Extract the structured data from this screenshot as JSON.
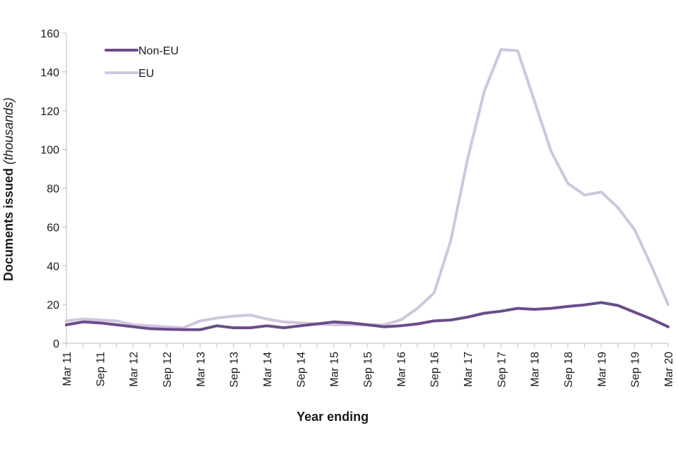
{
  "chart_data": {
    "type": "line",
    "xlabel": "Year ending",
    "ylabel": "Documents issued",
    "ylabel_suffix": "(thousands)",
    "ylim": [
      0,
      160
    ],
    "yticks": [
      0,
      20,
      40,
      60,
      80,
      100,
      120,
      140,
      160
    ],
    "grid": false,
    "legend_position": "top-left",
    "x": [
      "Mar 11",
      "Jun 11",
      "Sep 11",
      "Dec 11",
      "Mar 12",
      "Jun 12",
      "Sep 12",
      "Dec 12",
      "Mar 13",
      "Jun 13",
      "Sep 13",
      "Dec 13",
      "Mar 14",
      "Jun 14",
      "Sep 14",
      "Dec 14",
      "Mar 15",
      "Jun 15",
      "Sep 15",
      "Dec 15",
      "Mar 16",
      "Jun 16",
      "Sep 16",
      "Dec 16",
      "Mar 17",
      "Jun 17",
      "Sep 17",
      "Dec 17",
      "Mar 18",
      "Jun 18",
      "Sep 18",
      "Dec 18",
      "Mar 19",
      "Jun 19",
      "Sep 19",
      "Dec 19",
      "Mar 20"
    ],
    "x_tick_labels": [
      "Mar 11",
      "Sep 11",
      "Mar 12",
      "Sep 12",
      "Mar 13",
      "Sep 13",
      "Mar 14",
      "Sep 14",
      "Mar 15",
      "Sep 15",
      "Mar 16",
      "Sep 16",
      "Mar 17",
      "Sep 17",
      "Mar 18",
      "Sep 18",
      "Mar 19",
      "Sep 19",
      "Mar 20"
    ],
    "series": [
      {
        "name": "Non-EU",
        "color": "#6b4c8a",
        "values": [
          9.5,
          11,
          10.5,
          9.5,
          8.5,
          7.5,
          7.2,
          7.0,
          7.0,
          9.0,
          8.0,
          8.0,
          9.0,
          8.0,
          9.0,
          10.0,
          11.0,
          10.5,
          9.5,
          8.5,
          9.0,
          10.0,
          11.5,
          12.0,
          13.5,
          15.5,
          16.5,
          18.0,
          17.5,
          18.0,
          19.0,
          19.8,
          21.0,
          19.5,
          16.0,
          12.5,
          8.5
        ]
      },
      {
        "name": "EU",
        "color": "#cfc6de",
        "values": [
          11.5,
          12.5,
          12.0,
          11.5,
          9.5,
          9.0,
          8.5,
          8.0,
          11.5,
          13.0,
          14.0,
          14.5,
          12.5,
          11.0,
          10.5,
          10.0,
          9.5,
          9.5,
          9.5,
          9.5,
          12.0,
          18.0,
          26.0,
          53.0,
          95.0,
          130.0,
          151.5,
          151.0,
          125.0,
          99.0,
          82.5,
          76.5,
          78.0,
          70.0,
          58.5,
          40.0,
          20.0
        ]
      }
    ]
  }
}
